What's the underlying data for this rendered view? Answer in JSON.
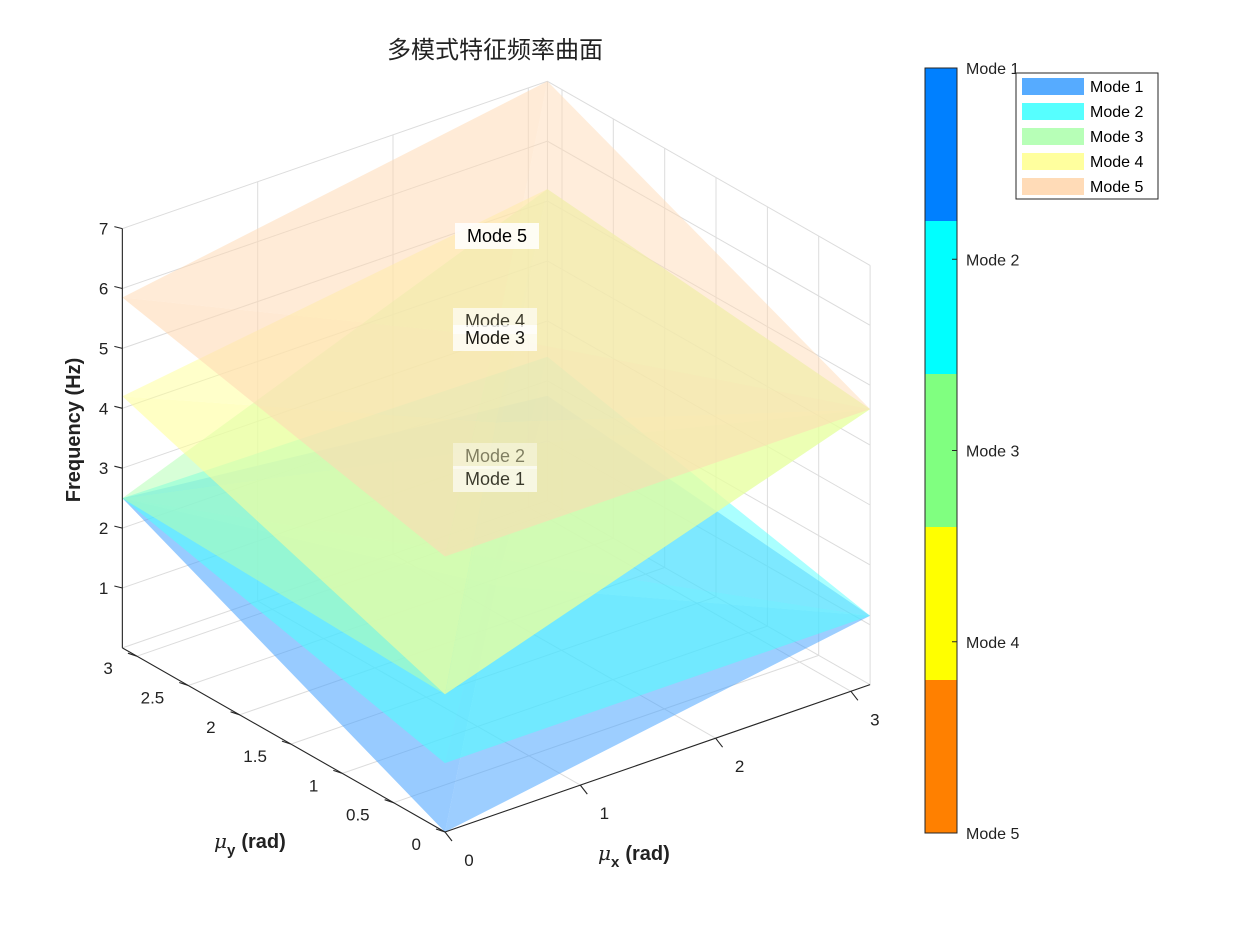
{
  "chart_data": {
    "type": "surface3d",
    "title": "多模式特征频率曲面",
    "xlabel": {
      "symbol": "μ",
      "sub": "x",
      "unit": "(rad)"
    },
    "ylabel": {
      "symbol": "μ",
      "sub": "y",
      "unit": "(rad)"
    },
    "zlabel": "Frequency (Hz)",
    "xlim": [
      0,
      3.1416
    ],
    "ylim": [
      0,
      3.1416
    ],
    "zlim": [
      0,
      7
    ],
    "xticks": [
      "0",
      "1",
      "2",
      "3"
    ],
    "yticks": [
      "0",
      "0.5",
      "1",
      "1.5",
      "2",
      "2.5",
      "3"
    ],
    "zticks": [
      "1",
      "2",
      "3",
      "4",
      "5",
      "6",
      "7"
    ],
    "grid": true,
    "series": [
      {
        "name": "Mode 1",
        "color": "#4da6ff",
        "surface_corners": {
          "x0y0": 0.0,
          "xPiy0": 1.15,
          "x0yPi": 2.5,
          "xPiyPi": 1.75
        }
      },
      {
        "name": "Mode 2",
        "color": "#4dffff",
        "surface_corners": {
          "x0y0": 1.15,
          "xPiy0": 1.15,
          "x0yPi": 2.5,
          "xPiyPi": 2.4
        }
      },
      {
        "name": "Mode 3",
        "color": "#b3ffb3",
        "surface_corners": {
          "x0y0": 2.3,
          "xPiy0": 4.6,
          "x0yPi": 2.5,
          "xPiyPi": 5.2
        }
      },
      {
        "name": "Mode 4",
        "color": "#ffff99",
        "surface_corners": {
          "x0y0": 2.3,
          "xPiy0": 4.6,
          "x0yPi": 4.2,
          "xPiyPi": 5.2
        }
      },
      {
        "name": "Mode 5",
        "color": "#ffd9b3",
        "surface_corners": {
          "x0y0": 4.6,
          "xPiy0": 4.6,
          "x0yPi": 5.85,
          "xPiyPi": 7.0
        }
      }
    ],
    "annotations": [
      "Mode 5",
      "Mode 4",
      "Mode 3",
      "Mode 2",
      "Mode 1"
    ],
    "legend": {
      "placement": "top-right",
      "entries": [
        "Mode 1",
        "Mode 2",
        "Mode 3",
        "Mode 4",
        "Mode 5"
      ]
    },
    "colorbar": {
      "labels": [
        "Mode 1",
        "Mode 2",
        "Mode 3",
        "Mode 4",
        "Mode 5"
      ],
      "colors": [
        "#0080ff",
        "#00ffff",
        "#80ff80",
        "#ffff00",
        "#ff8000"
      ]
    }
  }
}
